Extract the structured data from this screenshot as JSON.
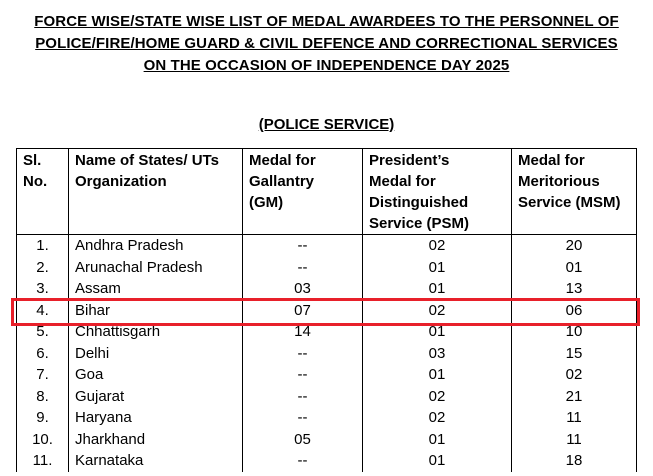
{
  "title_lines": [
    "FORCE WISE/STATE WISE LIST OF MEDAL AWARDEES TO THE PERSONNEL OF",
    "POLICE/FIRE/HOME GUARD & CIVIL DEFENCE AND CORRECTIONAL SERVICES",
    "ON THE OCCASION OF INDEPENDENCE DAY 2025"
  ],
  "subtitle": "(POLICE SERVICE)",
  "table": {
    "headers": [
      [
        "Sl.",
        "No."
      ],
      [
        "Name of States/ UTs",
        "Organization"
      ],
      [
        "Medal for",
        "Gallantry",
        "(GM)"
      ],
      [
        "President’s",
        "Medal for",
        "Distinguished",
        "Service (PSM)"
      ],
      [
        "Medal for",
        "Meritorious",
        "Service (MSM)"
      ]
    ],
    "rows": [
      {
        "sl": "1.",
        "name": "Andhra Pradesh",
        "gm": "--",
        "psm": "02",
        "msm": "20"
      },
      {
        "sl": "2.",
        "name": "Arunachal Pradesh",
        "gm": "--",
        "psm": "01",
        "msm": "01"
      },
      {
        "sl": "3.",
        "name": "Assam",
        "gm": "03",
        "psm": "01",
        "msm": "13"
      },
      {
        "sl": "4.",
        "name": "Bihar",
        "gm": "07",
        "psm": "02",
        "msm": "06"
      },
      {
        "sl": "5.",
        "name": "Chhattisgarh",
        "gm": "14",
        "psm": "01",
        "msm": "10"
      },
      {
        "sl": "6.",
        "name": "Delhi",
        "gm": "--",
        "psm": "03",
        "msm": "15"
      },
      {
        "sl": "7.",
        "name": "Goa",
        "gm": "--",
        "psm": "01",
        "msm": "02"
      },
      {
        "sl": "8.",
        "name": "Gujarat",
        "gm": "--",
        "psm": "02",
        "msm": "21"
      },
      {
        "sl": "9.",
        "name": "Haryana",
        "gm": "--",
        "psm": "02",
        "msm": "11"
      },
      {
        "sl": "10.",
        "name": "Jharkhand",
        "gm": "05",
        "psm": "01",
        "msm": "11"
      },
      {
        "sl": "11.",
        "name": "Karnataka",
        "gm": "--",
        "psm": "01",
        "msm": "18"
      }
    ]
  },
  "highlight": {
    "row_index": 3,
    "color": "#e8202a"
  }
}
